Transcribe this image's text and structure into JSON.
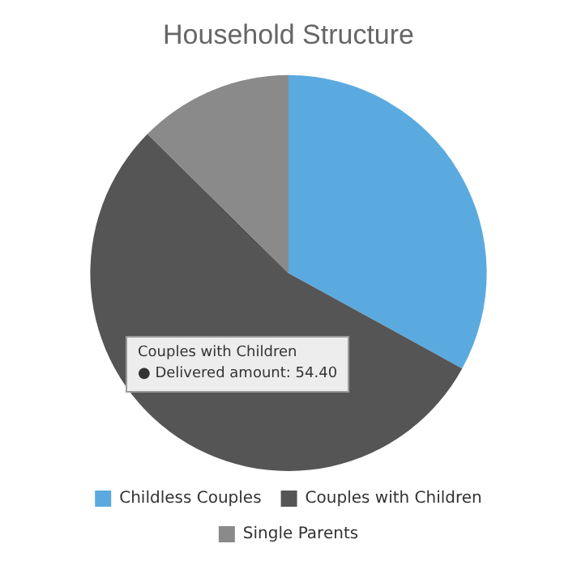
{
  "chart_data": {
    "type": "pie",
    "title": "Household Structure",
    "categories": [
      "Childless Couples",
      "Couples with Children",
      "Single Parents"
    ],
    "values": [
      33,
      54.4,
      12.6
    ],
    "colors": [
      "#5aaadf",
      "#555555",
      "#8a8a8a"
    ],
    "legend": "bottom",
    "annotations": [
      "Couples with Children",
      "● Delivered amount: 54.40"
    ]
  }
}
